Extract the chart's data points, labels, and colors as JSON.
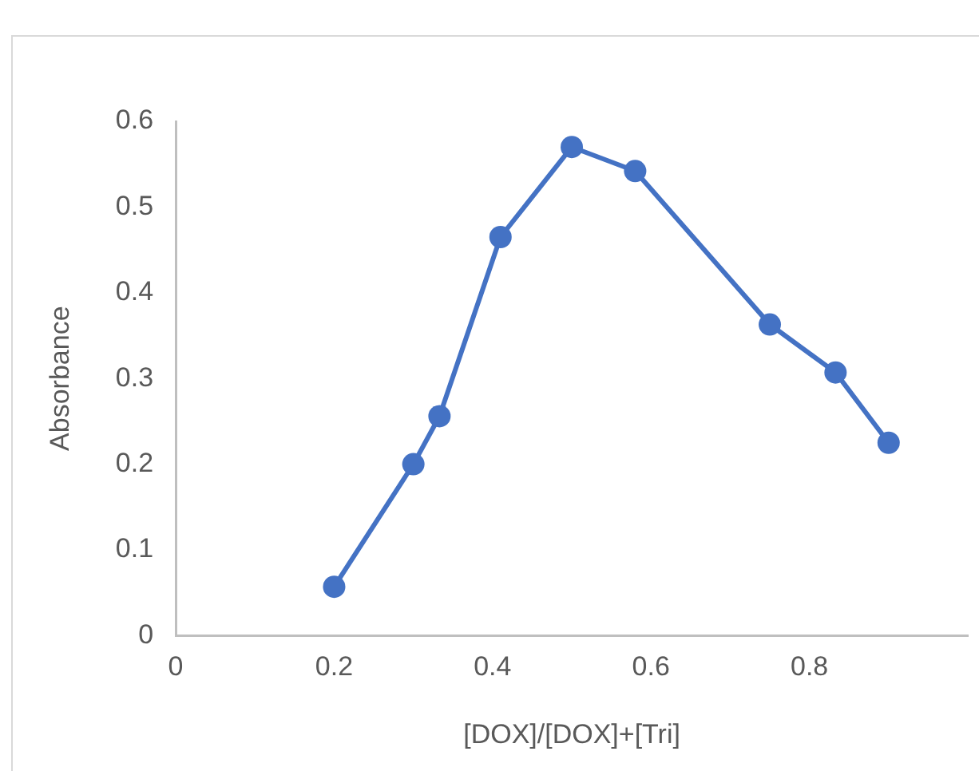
{
  "chart_data": {
    "type": "line",
    "xlabel": "[DOX]/[DOX]+[Tri]",
    "ylabel": "Absorbance",
    "x": [
      0.2,
      0.3,
      0.333,
      0.41,
      0.5,
      0.58,
      0.75,
      0.833,
      0.9
    ],
    "series": [
      {
        "color": "#4472c4",
        "values": [
          0.057,
          0.2,
          0.256,
          0.465,
          0.57,
          0.542,
          0.363,
          0.307,
          0.225
        ]
      }
    ],
    "xlim": [
      0,
      1
    ],
    "xticks": [
      0,
      0.2,
      0.4,
      0.6,
      0.8
    ],
    "ylim": [
      0,
      0.6
    ],
    "yticks": [
      0,
      0.1,
      0.2,
      0.3,
      0.4,
      0.5,
      0.6
    ],
    "grid": false,
    "legend": false,
    "marker": "circle",
    "line_style": "solid"
  }
}
